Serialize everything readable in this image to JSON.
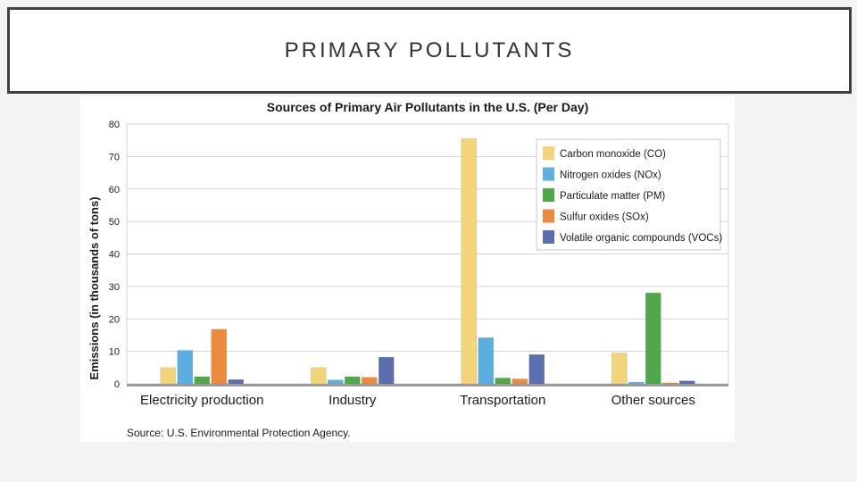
{
  "slide": {
    "title": "PRIMARY POLLUTANTS"
  },
  "chart_data": {
    "type": "bar",
    "title": "Sources of Primary Air Pollutants in the U.S. (Per Day)",
    "ylabel": "Emissions (in thousands of tons)",
    "xlabel": "",
    "ylim": [
      0,
      80
    ],
    "yticks": [
      0,
      10,
      20,
      30,
      40,
      50,
      60,
      70,
      80
    ],
    "categories": [
      "Electricity production",
      "Industry",
      "Transportation",
      "Other sources"
    ],
    "series": [
      {
        "name": "Carbon monoxide (CO)",
        "color": "#f2d47a",
        "values": [
          5,
          5,
          75.5,
          9.5
        ]
      },
      {
        "name": "Nitrogen oxides (NOx)",
        "color": "#5aaee0",
        "values": [
          10.3,
          1.2,
          14.2,
          0.5
        ]
      },
      {
        "name": "Particulate matter (PM)",
        "color": "#4fa84a",
        "values": [
          2.2,
          2.2,
          1.8,
          28
        ]
      },
      {
        "name": "Sulfur oxides (SOx)",
        "color": "#ee8a3c",
        "values": [
          16.8,
          2,
          1.5,
          0.3
        ]
      },
      {
        "name": "Volatile organic compounds (VOCs)",
        "color": "#5b6fae",
        "values": [
          1.3,
          8.2,
          9,
          0.9
        ]
      }
    ],
    "grid": true,
    "legend_position": "top-right",
    "source": "Source: U.S. Environmental Protection Agency."
  }
}
